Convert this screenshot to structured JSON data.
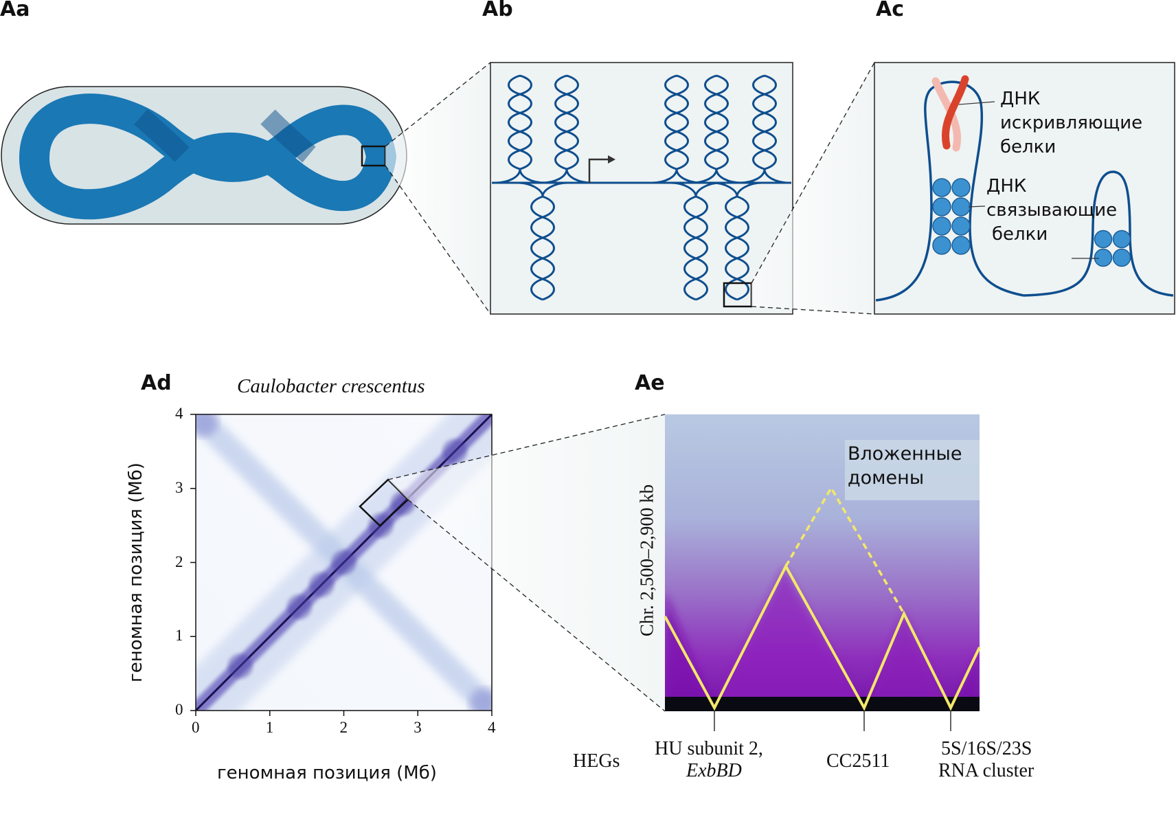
{
  "panels": {
    "aa": {
      "label": "Aa"
    },
    "ab": {
      "label": "Ab"
    },
    "ac": {
      "label": "Ac",
      "bending_label": [
        "ДНК",
        "искривляющие",
        "белки"
      ],
      "binding_label": [
        "ДНК",
        "связывающие",
        "белки"
      ]
    },
    "ad": {
      "label": "Ad",
      "title": "Caulobacter crescentus",
      "xlabel": "геномная позиция (Мб)",
      "ylabel": "геномная позиция (Мб)"
    },
    "ae": {
      "label": "Ae",
      "ylabel": "Chr. 2,500–2,900 kb",
      "nested_label": [
        "Вложенные",
        "домены"
      ],
      "heg_label": "HEGs",
      "genes": [
        {
          "line1": "HU subunit 2,",
          "line2": "ExbBD"
        },
        {
          "line1": "CC2511",
          "line2": ""
        },
        {
          "line1": "5S/16S/23S",
          "line2": "RNA cluster"
        }
      ]
    }
  },
  "colors": {
    "dna_blue": "#0e4e8e",
    "chromosome_blue": "#1a78b4",
    "bead_blue": "#3c92d0",
    "domain_yellow": "#f3e86a",
    "bend_red": "#d9432c"
  },
  "chart_data": {
    "type": "heatmap",
    "title": "Caulobacter crescentus",
    "xlabel": "геномная позиция (Мб)",
    "ylabel": "геномная позиция (Мб)",
    "xlim": [
      0,
      4
    ],
    "ylim": [
      0,
      4
    ],
    "x_ticks": [
      "0",
      "1",
      "2",
      "3",
      "4"
    ],
    "y_ticks": [
      "0",
      "1",
      "2",
      "3",
      "4"
    ]
  }
}
